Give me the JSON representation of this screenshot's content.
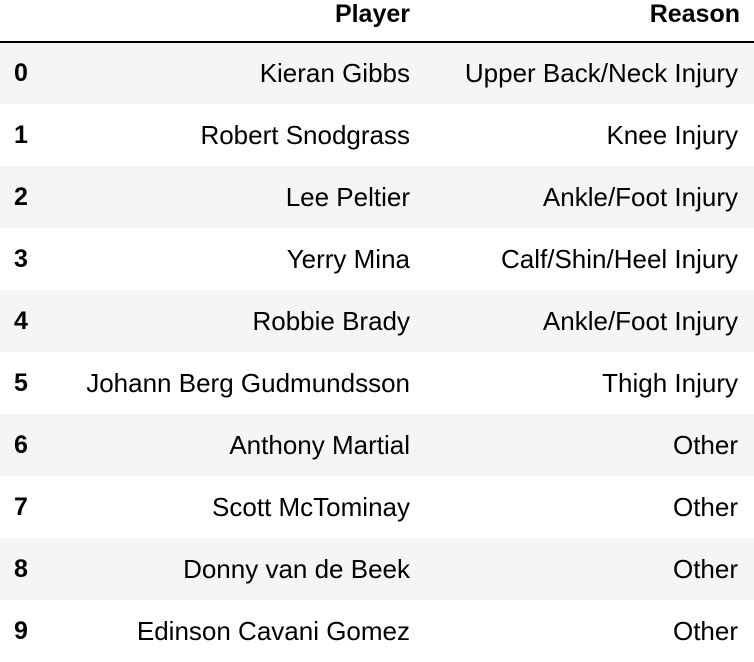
{
  "table": {
    "columns": [
      "",
      "Player",
      "Reason"
    ],
    "rows": [
      {
        "index": "0",
        "player": "Kieran Gibbs",
        "reason": "Upper Back/Neck Injury"
      },
      {
        "index": "1",
        "player": "Robert Snodgrass",
        "reason": "Knee Injury"
      },
      {
        "index": "2",
        "player": "Lee Peltier",
        "reason": "Ankle/Foot Injury"
      },
      {
        "index": "3",
        "player": "Yerry Mina",
        "reason": "Calf/Shin/Heel Injury"
      },
      {
        "index": "4",
        "player": "Robbie Brady",
        "reason": "Ankle/Foot Injury"
      },
      {
        "index": "5",
        "player": "Johann Berg Gudmundsson",
        "reason": "Thigh Injury"
      },
      {
        "index": "6",
        "player": "Anthony Martial",
        "reason": "Other"
      },
      {
        "index": "7",
        "player": "Scott McTominay",
        "reason": "Other"
      },
      {
        "index": "8",
        "player": "Donny van de Beek",
        "reason": "Other"
      },
      {
        "index": "9",
        "player": "Edinson Cavani Gomez",
        "reason": "Other"
      }
    ]
  },
  "colors": {
    "stripe": "#f5f5f5",
    "header_rule": "#000000"
  }
}
